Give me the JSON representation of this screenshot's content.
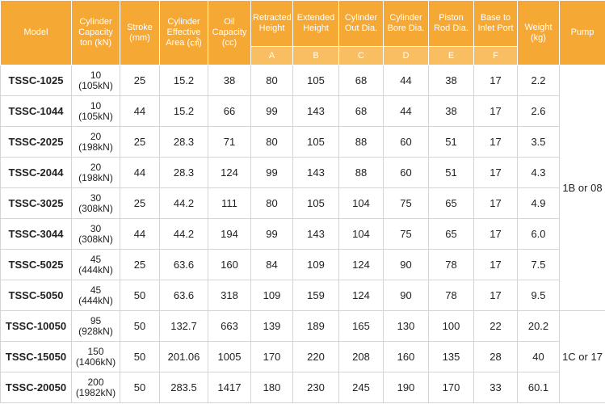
{
  "table": {
    "columns": [
      {
        "label": "Model"
      },
      {
        "label": "Cylinder Capacity ton (kN)"
      },
      {
        "label": "Stroke (mm)"
      },
      {
        "label": "Cylinder Effective Area (㎠)"
      },
      {
        "label": "Oil Capacity (cc)"
      },
      {
        "label": "Retracted Height",
        "sub": "A"
      },
      {
        "label": "Extended Height",
        "sub": "B"
      },
      {
        "label": "Cylinder Out Dia.",
        "sub": "C"
      },
      {
        "label": "Cylinder Bore Dia.",
        "sub": "D"
      },
      {
        "label": "Piston Rod Dia.",
        "sub": "E"
      },
      {
        "label": "Base to Inlet Port",
        "sub": "F"
      },
      {
        "label": "Weight (kg)"
      },
      {
        "label": "Pump"
      }
    ],
    "rows": [
      [
        "TSSC-1025",
        "10 (105kN)",
        "25",
        "15.2",
        "38",
        "80",
        "105",
        "68",
        "44",
        "38",
        "17",
        "2.2"
      ],
      [
        "TSSC-1044",
        "10 (105kN)",
        "44",
        "15.2",
        "66",
        "99",
        "143",
        "68",
        "44",
        "38",
        "17",
        "2.6"
      ],
      [
        "TSSC-2025",
        "20 (198kN)",
        "25",
        "28.3",
        "71",
        "80",
        "105",
        "88",
        "60",
        "51",
        "17",
        "3.5"
      ],
      [
        "TSSC-2044",
        "20 (198kN)",
        "44",
        "28.3",
        "124",
        "99",
        "143",
        "88",
        "60",
        "51",
        "17",
        "4.3"
      ],
      [
        "TSSC-3025",
        "30 (308kN)",
        "25",
        "44.2",
        "111",
        "80",
        "105",
        "104",
        "75",
        "65",
        "17",
        "4.9"
      ],
      [
        "TSSC-3044",
        "30 (308kN)",
        "44",
        "44.2",
        "194",
        "99",
        "143",
        "104",
        "75",
        "65",
        "17",
        "6.0"
      ],
      [
        "TSSC-5025",
        "45 (444kN)",
        "25",
        "63.6",
        "160",
        "84",
        "109",
        "124",
        "90",
        "78",
        "17",
        "7.5"
      ],
      [
        "TSSC-5050",
        "45 (444kN)",
        "50",
        "63.6",
        "318",
        "109",
        "159",
        "124",
        "90",
        "78",
        "17",
        "9.5"
      ],
      [
        "TSSC-10050",
        "95 (928kN)",
        "50",
        "132.7",
        "663",
        "139",
        "189",
        "165",
        "130",
        "100",
        "22",
        "20.2"
      ],
      [
        "TSSC-15050",
        "150 (1406kN)",
        "50",
        "201.06",
        "1005",
        "170",
        "220",
        "208",
        "160",
        "135",
        "28",
        "40"
      ],
      [
        "TSSC-20050",
        "200 (1982kN)",
        "50",
        "283.5",
        "1417",
        "180",
        "230",
        "245",
        "190",
        "170",
        "33",
        "60.1"
      ]
    ],
    "pump": [
      "1B or 08",
      "1C or 17"
    ]
  }
}
